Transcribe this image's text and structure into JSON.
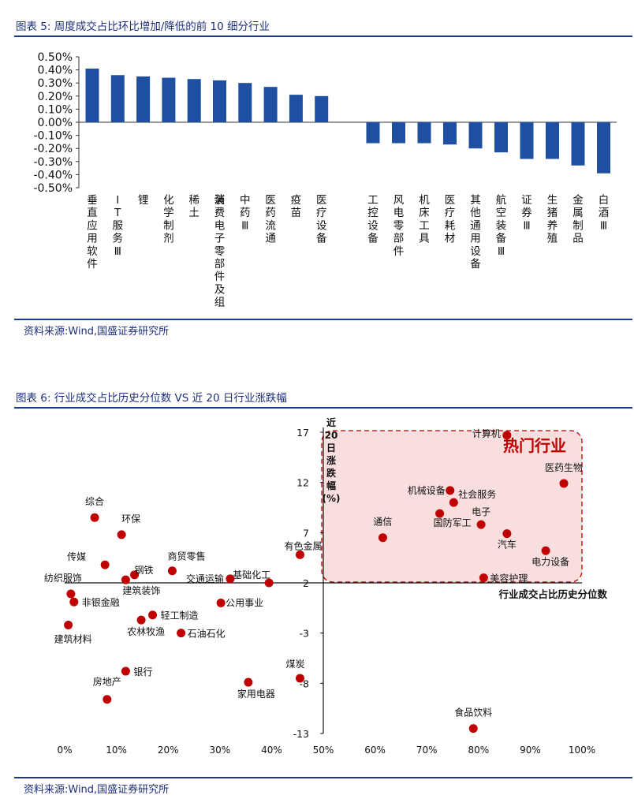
{
  "figure5": {
    "title": "图表 5:  周度成交占比环比增加/降低的前 10 细分行业",
    "source": "资料来源:Wind,国盛证券研究所"
  },
  "figure6": {
    "title": "图表 6:  行业成交占比历史分位数  VS  近 20 日行业涨跌幅",
    "source": "资料来源:Wind,国盛证券研究所",
    "hot_zone_label": "热门行业"
  },
  "colors": {
    "bar": "#1f4fa0",
    "dot": "#c00000",
    "hot_zone_fill": "#f9dede",
    "hot_zone_border": "#c00000",
    "title": "#1d2f7a"
  },
  "chart_data": [
    {
      "type": "bar",
      "categories": [
        "垂直应用软件",
        "IT服务Ⅲ",
        "锂",
        "化学制剂",
        "稀土",
        "消费电子零部件及组装",
        "中药Ⅲ",
        "医药流通",
        "疫苗",
        "医疗设备",
        "工控设备",
        "风电零部件",
        "机床工具",
        "医疗耗材",
        "其他通用设备",
        "航空装备Ⅲ",
        "证券Ⅲ",
        "生猪养殖",
        "金属制品",
        "白酒Ⅲ"
      ],
      "values": [
        0.41,
        0.36,
        0.35,
        0.34,
        0.33,
        0.32,
        0.3,
        0.27,
        0.21,
        0.2,
        -0.16,
        -0.16,
        -0.16,
        -0.17,
        -0.2,
        -0.23,
        -0.28,
        -0.28,
        -0.33,
        -0.39
      ],
      "y_ticks": [
        "0.50%",
        "0.40%",
        "0.30%",
        "0.20%",
        "0.10%",
        "0.00%",
        "-0.10%",
        "-0.20%",
        "-0.30%",
        "-0.40%",
        "-0.50%"
      ],
      "ylim": [
        -0.5,
        0.5
      ],
      "unit": "%",
      "grid": false
    },
    {
      "type": "scatter",
      "xlabel": "行业成交占比历史分位数",
      "ylabel": "近20日涨跌幅(%)",
      "xlim": [
        0,
        100
      ],
      "ylim": [
        -13,
        17
      ],
      "x_ticks": [
        "0%",
        "10%",
        "20%",
        "30%",
        "40%",
        "50%",
        "60%",
        "70%",
        "80%",
        "90%",
        "100%"
      ],
      "y_ticks": [
        "17",
        "12",
        "7",
        "2",
        "-3",
        "-8",
        "-13"
      ],
      "points": [
        {
          "name": "计算机",
          "x": 85.5,
          "y": 16.7
        },
        {
          "name": "医药生物",
          "x": 96.5,
          "y": 11.9
        },
        {
          "name": "机械设备",
          "x": 74.5,
          "y": 11.2
        },
        {
          "name": "社会服务",
          "x": 75.2,
          "y": 10.0
        },
        {
          "name": "国防军工",
          "x": 72.5,
          "y": 8.9
        },
        {
          "name": "电子",
          "x": 80.5,
          "y": 7.8
        },
        {
          "name": "通信",
          "x": 61.5,
          "y": 6.5
        },
        {
          "name": "汽车",
          "x": 85.5,
          "y": 6.9
        },
        {
          "name": "电力设备",
          "x": 93.0,
          "y": 5.2
        },
        {
          "name": "美容护理",
          "x": 81.0,
          "y": 2.5
        },
        {
          "name": "有色金属",
          "x": 45.5,
          "y": 4.8
        },
        {
          "name": "基础化工",
          "x": 39.5,
          "y": 2.0
        },
        {
          "name": "交通运输",
          "x": 32.0,
          "y": 2.4
        },
        {
          "name": "商贸零售",
          "x": 20.8,
          "y": 3.2
        },
        {
          "name": "钢铁",
          "x": 13.5,
          "y": 2.8
        },
        {
          "name": "建筑装饰",
          "x": 11.8,
          "y": 2.3
        },
        {
          "name": "传媒",
          "x": 7.8,
          "y": 3.8
        },
        {
          "name": "环保",
          "x": 11.0,
          "y": 6.8
        },
        {
          "name": "综合",
          "x": 5.8,
          "y": 8.5
        },
        {
          "name": "纺织服饰",
          "x": 1.2,
          "y": 0.9
        },
        {
          "name": "非银金融",
          "x": 1.8,
          "y": 0.1
        },
        {
          "name": "建筑材料",
          "x": 0.7,
          "y": -2.2
        },
        {
          "name": "公用事业",
          "x": 30.2,
          "y": 0.0
        },
        {
          "name": "轻工制造",
          "x": 17.0,
          "y": -1.2
        },
        {
          "name": "农林牧渔",
          "x": 14.8,
          "y": -1.7
        },
        {
          "name": "石油石化",
          "x": 22.5,
          "y": -3.0
        },
        {
          "name": "银行",
          "x": 11.8,
          "y": -6.8
        },
        {
          "name": "房地产",
          "x": 8.2,
          "y": -9.6
        },
        {
          "name": "家用电器",
          "x": 35.5,
          "y": -7.9
        },
        {
          "name": "煤炭",
          "x": 45.5,
          "y": -7.5
        },
        {
          "name": "食品饮料",
          "x": 79.0,
          "y": -12.5
        }
      ]
    }
  ]
}
